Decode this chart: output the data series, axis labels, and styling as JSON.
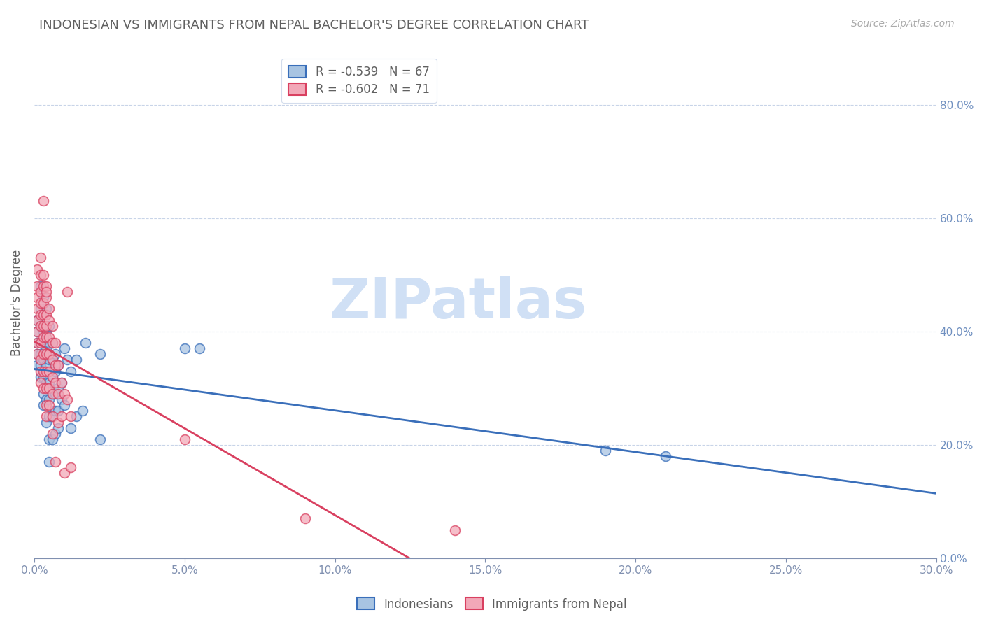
{
  "title": "INDONESIAN VS IMMIGRANTS FROM NEPAL BACHELOR'S DEGREE CORRELATION CHART",
  "source": "Source: ZipAtlas.com",
  "ylabel": "Bachelor's Degree",
  "legend_blue_r": "R = -0.539",
  "legend_blue_n": "N = 67",
  "legend_pink_r": "R = -0.602",
  "legend_pink_n": "N = 71",
  "blue_color": "#a8c4e2",
  "pink_color": "#f2a8b8",
  "blue_line_color": "#3a6fba",
  "pink_line_color": "#d94060",
  "watermark_text": "ZIPatlas",
  "watermark_color": "#d0e0f5",
  "blue_points": [
    [
      0.001,
      0.42
    ],
    [
      0.001,
      0.4
    ],
    [
      0.001,
      0.38
    ],
    [
      0.001,
      0.36
    ],
    [
      0.001,
      0.34
    ],
    [
      0.002,
      0.44
    ],
    [
      0.002,
      0.41
    ],
    [
      0.002,
      0.38
    ],
    [
      0.002,
      0.36
    ],
    [
      0.002,
      0.34
    ],
    [
      0.002,
      0.32
    ],
    [
      0.002,
      0.48
    ],
    [
      0.003,
      0.46
    ],
    [
      0.003,
      0.43
    ],
    [
      0.003,
      0.4
    ],
    [
      0.003,
      0.38
    ],
    [
      0.003,
      0.35
    ],
    [
      0.003,
      0.32
    ],
    [
      0.003,
      0.29
    ],
    [
      0.003,
      0.27
    ],
    [
      0.004,
      0.44
    ],
    [
      0.004,
      0.4
    ],
    [
      0.004,
      0.37
    ],
    [
      0.004,
      0.34
    ],
    [
      0.004,
      0.31
    ],
    [
      0.004,
      0.28
    ],
    [
      0.004,
      0.24
    ],
    [
      0.005,
      0.41
    ],
    [
      0.005,
      0.38
    ],
    [
      0.005,
      0.35
    ],
    [
      0.005,
      0.31
    ],
    [
      0.005,
      0.28
    ],
    [
      0.005,
      0.25
    ],
    [
      0.005,
      0.21
    ],
    [
      0.005,
      0.17
    ],
    [
      0.006,
      0.38
    ],
    [
      0.006,
      0.35
    ],
    [
      0.006,
      0.32
    ],
    [
      0.006,
      0.29
    ],
    [
      0.006,
      0.25
    ],
    [
      0.006,
      0.21
    ],
    [
      0.007,
      0.36
    ],
    [
      0.007,
      0.33
    ],
    [
      0.007,
      0.29
    ],
    [
      0.007,
      0.26
    ],
    [
      0.007,
      0.22
    ],
    [
      0.008,
      0.34
    ],
    [
      0.008,
      0.3
    ],
    [
      0.008,
      0.26
    ],
    [
      0.008,
      0.23
    ],
    [
      0.009,
      0.31
    ],
    [
      0.009,
      0.28
    ],
    [
      0.01,
      0.37
    ],
    [
      0.01,
      0.27
    ],
    [
      0.011,
      0.35
    ],
    [
      0.012,
      0.33
    ],
    [
      0.012,
      0.23
    ],
    [
      0.014,
      0.35
    ],
    [
      0.014,
      0.25
    ],
    [
      0.016,
      0.26
    ],
    [
      0.017,
      0.38
    ],
    [
      0.022,
      0.36
    ],
    [
      0.022,
      0.21
    ],
    [
      0.05,
      0.37
    ],
    [
      0.055,
      0.37
    ],
    [
      0.19,
      0.19
    ],
    [
      0.21,
      0.18
    ]
  ],
  "pink_points": [
    [
      0.001,
      0.51
    ],
    [
      0.001,
      0.48
    ],
    [
      0.001,
      0.46
    ],
    [
      0.001,
      0.44
    ],
    [
      0.001,
      0.42
    ],
    [
      0.001,
      0.4
    ],
    [
      0.001,
      0.38
    ],
    [
      0.001,
      0.36
    ],
    [
      0.002,
      0.53
    ],
    [
      0.002,
      0.5
    ],
    [
      0.002,
      0.47
    ],
    [
      0.002,
      0.45
    ],
    [
      0.002,
      0.43
    ],
    [
      0.002,
      0.41
    ],
    [
      0.002,
      0.38
    ],
    [
      0.002,
      0.35
    ],
    [
      0.002,
      0.33
    ],
    [
      0.002,
      0.31
    ],
    [
      0.003,
      0.63
    ],
    [
      0.003,
      0.5
    ],
    [
      0.003,
      0.48
    ],
    [
      0.003,
      0.45
    ],
    [
      0.003,
      0.43
    ],
    [
      0.003,
      0.41
    ],
    [
      0.003,
      0.39
    ],
    [
      0.003,
      0.36
    ],
    [
      0.003,
      0.33
    ],
    [
      0.003,
      0.3
    ],
    [
      0.004,
      0.48
    ],
    [
      0.004,
      0.46
    ],
    [
      0.004,
      0.43
    ],
    [
      0.004,
      0.41
    ],
    [
      0.004,
      0.39
    ],
    [
      0.004,
      0.36
    ],
    [
      0.004,
      0.33
    ],
    [
      0.004,
      0.3
    ],
    [
      0.004,
      0.27
    ],
    [
      0.004,
      0.25
    ],
    [
      0.004,
      0.47
    ],
    [
      0.005,
      0.44
    ],
    [
      0.005,
      0.42
    ],
    [
      0.005,
      0.39
    ],
    [
      0.005,
      0.36
    ],
    [
      0.005,
      0.33
    ],
    [
      0.005,
      0.3
    ],
    [
      0.005,
      0.27
    ],
    [
      0.006,
      0.41
    ],
    [
      0.006,
      0.38
    ],
    [
      0.006,
      0.35
    ],
    [
      0.006,
      0.32
    ],
    [
      0.006,
      0.29
    ],
    [
      0.006,
      0.25
    ],
    [
      0.006,
      0.22
    ],
    [
      0.007,
      0.38
    ],
    [
      0.007,
      0.34
    ],
    [
      0.007,
      0.31
    ],
    [
      0.007,
      0.17
    ],
    [
      0.008,
      0.34
    ],
    [
      0.008,
      0.29
    ],
    [
      0.008,
      0.24
    ],
    [
      0.009,
      0.31
    ],
    [
      0.009,
      0.25
    ],
    [
      0.01,
      0.29
    ],
    [
      0.01,
      0.15
    ],
    [
      0.011,
      0.47
    ],
    [
      0.011,
      0.28
    ],
    [
      0.012,
      0.25
    ],
    [
      0.012,
      0.16
    ],
    [
      0.05,
      0.21
    ],
    [
      0.09,
      0.07
    ],
    [
      0.14,
      0.05
    ]
  ],
  "xlim": [
    0.0,
    0.3
  ],
  "ylim": [
    0.0,
    0.9
  ],
  "xtick_positions": [
    0.0,
    0.05,
    0.1,
    0.15,
    0.2,
    0.25,
    0.3
  ],
  "ytick_positions": [
    0.0,
    0.2,
    0.4,
    0.6,
    0.8
  ],
  "background_color": "#ffffff",
  "grid_color": "#c8d4e8",
  "title_color": "#606060",
  "source_color": "#aaaaaa",
  "axis_label_color": "#7090c0",
  "tick_color": "#8090b0",
  "marker_size": 100,
  "marker_linewidth": 1.2,
  "line_width": 2.0,
  "title_fontsize": 13,
  "source_fontsize": 10,
  "tick_fontsize": 11,
  "ylabel_fontsize": 12,
  "legend_fontsize": 12
}
